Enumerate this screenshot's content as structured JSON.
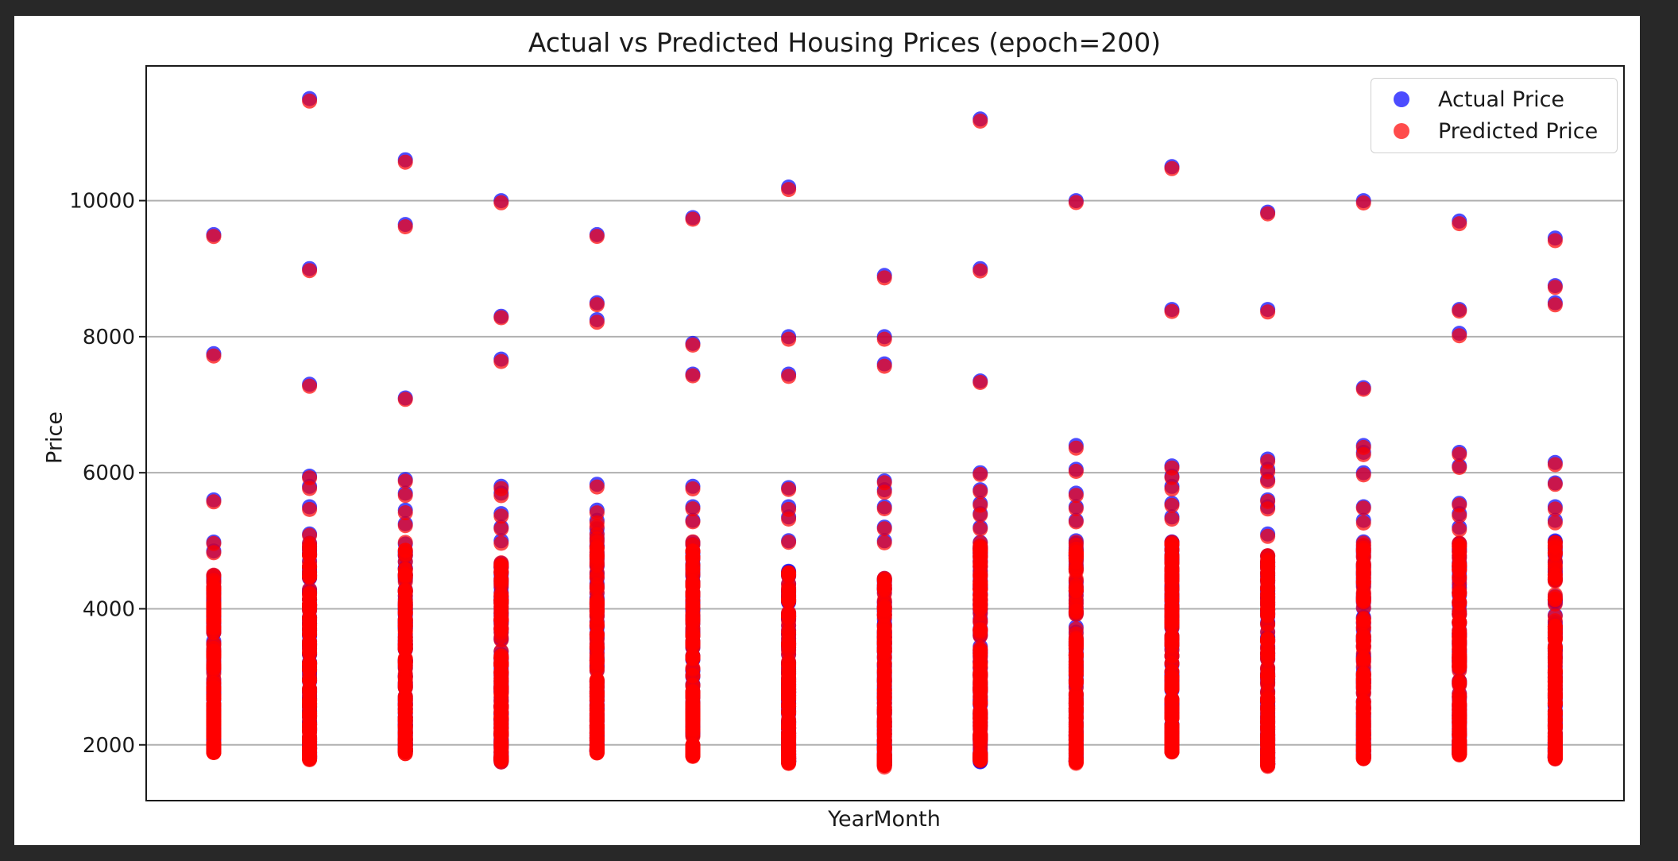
{
  "chart_data": {
    "type": "scatter",
    "title": "Actual vs Predicted Housing Prices (epoch=200)",
    "xlabel": "YearMonth",
    "ylabel": "Price",
    "ylim": [
      1180,
      11980
    ],
    "yticks": [
      "2000",
      "4000",
      "6000",
      "8000",
      "10000"
    ],
    "ytick_values": [
      2000,
      4000,
      6000,
      8000,
      10000
    ],
    "grid": "horizontal",
    "legend_position": "top-right",
    "x_categories": 15,
    "marker_opacity": 0.7,
    "series": [
      {
        "name": "Actual Price",
        "color": "#0000ff"
      },
      {
        "name": "Predicted Price",
        "color": "#ff0000"
      }
    ],
    "columns": [
      {
        "outliers": [
          9500,
          7750,
          5600,
          4980,
          4850
        ],
        "dense_range": [
          1900,
          4500
        ]
      },
      {
        "outliers": [
          11500,
          9000,
          7300,
          5950,
          5800,
          5500,
          5100
        ],
        "dense_range": [
          1800,
          5000
        ]
      },
      {
        "outliers": [
          10600,
          9650,
          7100,
          5900,
          5700,
          5450,
          5250
        ],
        "dense_range": [
          1900,
          5000
        ]
      },
      {
        "outliers": [
          10000,
          8300,
          7670,
          5800,
          5700,
          5400,
          5200,
          5000
        ],
        "dense_range": [
          1750,
          4800
        ]
      },
      {
        "outliers": [
          9500,
          8500,
          8250,
          5830,
          5450,
          5300
        ],
        "dense_range": [
          1900,
          5200
        ]
      },
      {
        "outliers": [
          9750,
          7900,
          7450,
          5800,
          5500,
          5300
        ],
        "dense_range": [
          1850,
          5000
        ]
      },
      {
        "outliers": [
          10200,
          8000,
          7450,
          5780,
          5500,
          5350,
          5000
        ],
        "dense_range": [
          1750,
          4600
        ]
      },
      {
        "outliers": [
          8900,
          8000,
          7600,
          5880,
          5750,
          5500,
          5200,
          5000
        ],
        "dense_range": [
          1700,
          4500
        ]
      },
      {
        "outliers": [
          11200,
          9000,
          7350,
          6000,
          5750,
          5550,
          5400,
          5200
        ],
        "dense_range": [
          1750,
          5000
        ]
      },
      {
        "outliers": [
          10000,
          6400,
          6050,
          5700,
          5500,
          5300
        ],
        "dense_range": [
          1750,
          5000
        ]
      },
      {
        "outliers": [
          10500,
          8400,
          6100,
          5950,
          5800,
          5550,
          5350
        ],
        "dense_range": [
          1900,
          5000
        ]
      },
      {
        "outliers": [
          9830,
          8400,
          6200,
          6050,
          5900,
          5600,
          5500,
          5100
        ],
        "dense_range": [
          1700,
          4800
        ]
      },
      {
        "outliers": [
          10000,
          7250,
          6400,
          6300,
          6000,
          5500,
          5300
        ],
        "dense_range": [
          1800,
          5000
        ]
      },
      {
        "outliers": [
          9700,
          8400,
          8050,
          6300,
          6100,
          5550,
          5400,
          5200
        ],
        "dense_range": [
          1870,
          5000
        ]
      },
      {
        "outliers": [
          9450,
          8750,
          8500,
          6150,
          5850,
          5500,
          5300
        ],
        "dense_range": [
          1800,
          5000
        ]
      }
    ]
  }
}
